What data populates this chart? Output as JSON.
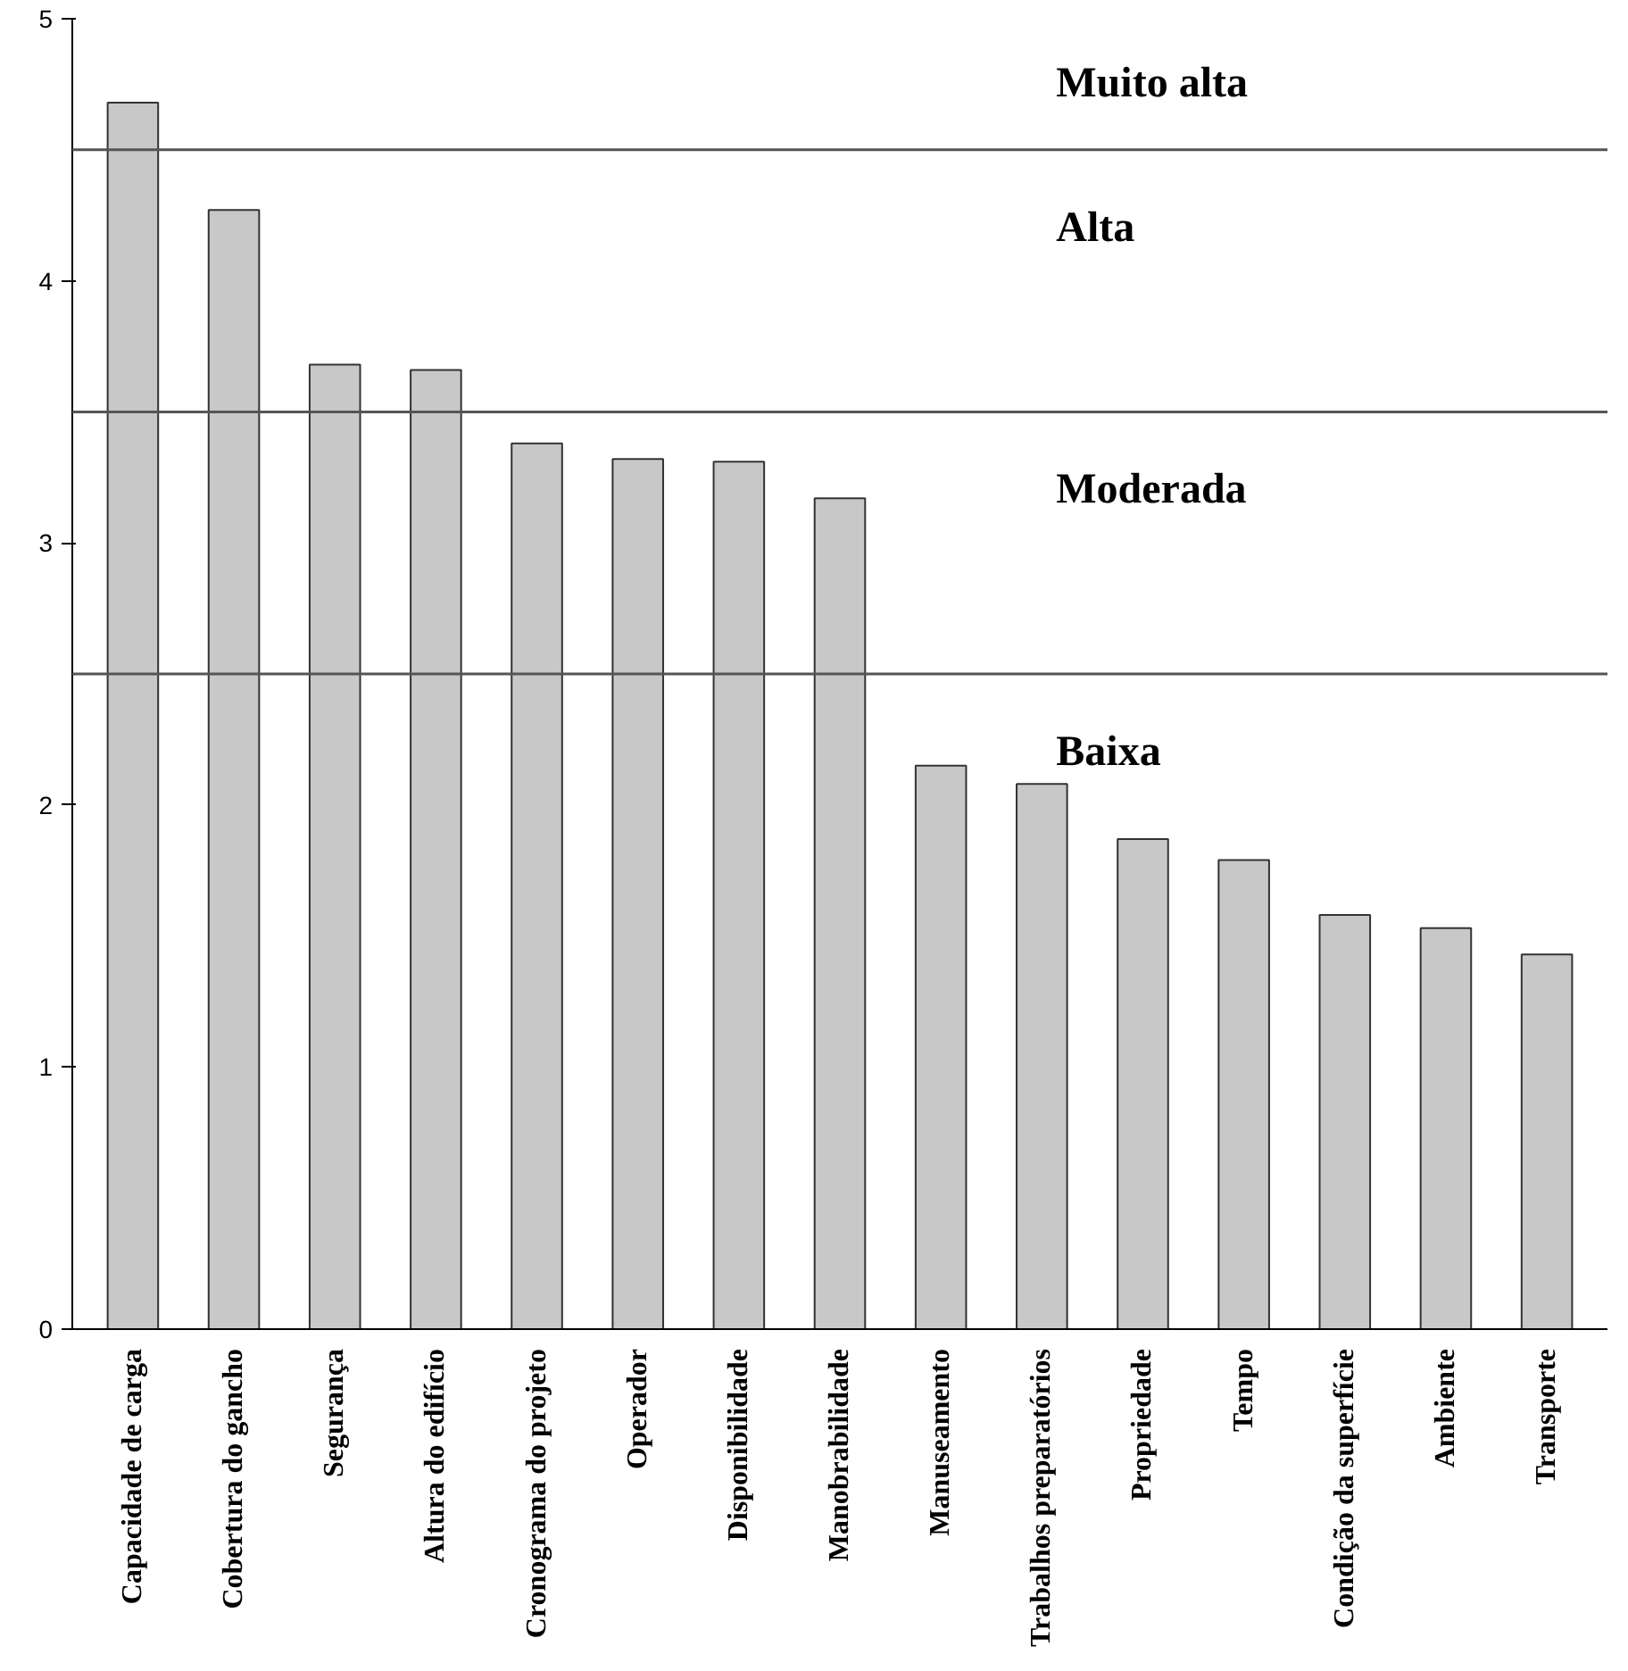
{
  "chart_data": {
    "type": "bar",
    "categories": [
      "Capacidade de carga",
      "Cobertura do gancho",
      "Segurança",
      "Altura do edifício",
      "Cronograma do projeto",
      "Operador",
      "Disponibilidade",
      "Manobrabilidade",
      "Manuseamento",
      "Trabalhos preparatórios",
      "Propriedade",
      "Tempo",
      "Condição da superfície",
      "Ambiente",
      "Transporte"
    ],
    "values": [
      4.68,
      4.27,
      3.68,
      3.66,
      3.38,
      3.32,
      3.31,
      3.17,
      2.15,
      2.08,
      1.87,
      1.79,
      1.58,
      1.53,
      1.43
    ],
    "color": "#c8c8c8",
    "ylim": [
      0,
      5
    ],
    "yticks": [
      0,
      1,
      2,
      3,
      4,
      5
    ],
    "grid": false,
    "ref_lines": [
      {
        "axis": "y",
        "value": 4.5,
        "color": "#555555"
      },
      {
        "axis": "y",
        "value": 3.5,
        "color": "#555555"
      },
      {
        "axis": "y",
        "value": 2.5,
        "color": "#555555"
      }
    ],
    "annotations": [
      "Muito alta",
      "Alta",
      "Moderada",
      "Baixa"
    ]
  }
}
